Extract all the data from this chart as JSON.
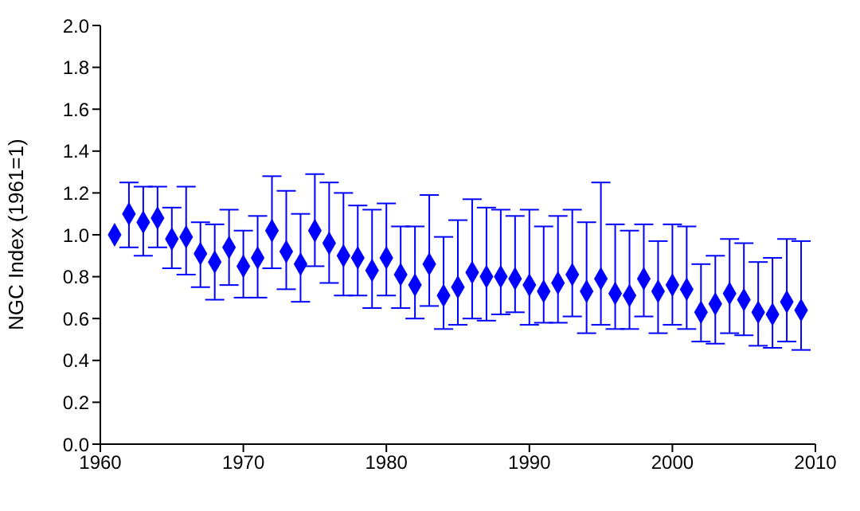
{
  "chart_data": {
    "type": "scatter",
    "ylabel": "NGC Index (1961=1)",
    "x": [
      1961,
      1962,
      1963,
      1964,
      1965,
      1966,
      1967,
      1968,
      1969,
      1970,
      1971,
      1972,
      1973,
      1974,
      1975,
      1976,
      1977,
      1978,
      1979,
      1980,
      1981,
      1982,
      1983,
      1984,
      1985,
      1986,
      1987,
      1988,
      1989,
      1990,
      1991,
      1992,
      1993,
      1994,
      1995,
      1996,
      1997,
      1998,
      1999,
      2000,
      2001,
      2002,
      2003,
      2004,
      2005,
      2006,
      2007,
      2008,
      2009
    ],
    "series": [
      {
        "color": "#0000ff",
        "values": [
          1.0,
          1.1,
          1.06,
          1.08,
          0.98,
          0.99,
          0.91,
          0.87,
          0.94,
          0.85,
          0.89,
          1.02,
          0.92,
          0.86,
          1.02,
          0.96,
          0.9,
          0.89,
          0.83,
          0.89,
          0.81,
          0.76,
          0.86,
          0.71,
          0.75,
          0.82,
          0.8,
          0.8,
          0.79,
          0.76,
          0.73,
          0.77,
          0.81,
          0.73,
          0.79,
          0.72,
          0.71,
          0.79,
          0.73,
          0.76,
          0.74,
          0.63,
          0.67,
          0.72,
          0.69,
          0.63,
          0.62,
          0.68,
          0.64
        ],
        "errors": [
          null,
          [
            0.94,
            1.25
          ],
          [
            0.9,
            1.23
          ],
          [
            0.94,
            1.23
          ],
          [
            0.84,
            1.13
          ],
          [
            0.81,
            1.23
          ],
          [
            0.75,
            1.06
          ],
          [
            0.69,
            1.05
          ],
          [
            0.76,
            1.12
          ],
          [
            0.7,
            1.02
          ],
          [
            0.7,
            1.09
          ],
          [
            0.84,
            1.28
          ],
          [
            0.74,
            1.21
          ],
          [
            0.68,
            1.1
          ],
          [
            0.85,
            1.29
          ],
          [
            0.77,
            1.25
          ],
          [
            0.71,
            1.2
          ],
          [
            0.71,
            1.14
          ],
          [
            0.65,
            1.12
          ],
          [
            0.71,
            1.15
          ],
          [
            0.65,
            1.04
          ],
          [
            0.6,
            1.04
          ],
          [
            0.66,
            1.19
          ],
          [
            0.55,
            0.99
          ],
          [
            0.57,
            1.07
          ],
          [
            0.6,
            1.17
          ],
          [
            0.59,
            1.13
          ],
          [
            0.62,
            1.12
          ],
          [
            0.63,
            1.09
          ],
          [
            0.57,
            1.12
          ],
          [
            0.58,
            1.04
          ],
          [
            0.58,
            1.09
          ],
          [
            0.61,
            1.12
          ],
          [
            0.53,
            1.06
          ],
          [
            0.57,
            1.25
          ],
          [
            0.55,
            1.05
          ],
          [
            0.55,
            1.02
          ],
          [
            0.61,
            1.05
          ],
          [
            0.53,
            0.97
          ],
          [
            0.57,
            1.05
          ],
          [
            0.55,
            1.04
          ],
          [
            0.49,
            0.86
          ],
          [
            0.48,
            0.9
          ],
          [
            0.53,
            0.98
          ],
          [
            0.52,
            0.96
          ],
          [
            0.47,
            0.87
          ],
          [
            0.46,
            0.89
          ],
          [
            0.49,
            0.98
          ],
          [
            0.45,
            0.97
          ]
        ]
      }
    ],
    "xlim": [
      1960,
      2010
    ],
    "xticks": [
      1960,
      1970,
      1980,
      1990,
      2000,
      2010
    ],
    "ylim": [
      0,
      2
    ],
    "yticks": [
      {
        "value": 0,
        "label": "0.0"
      },
      {
        "value": 0.2,
        "label": "0.2"
      },
      {
        "value": 0.4,
        "label": "0.4"
      },
      {
        "value": 0.6,
        "label": "0.6"
      },
      {
        "value": 0.8,
        "label": "0.8"
      },
      {
        "value": 1,
        "label": "1.0"
      },
      {
        "value": 1.2,
        "label": "1.2"
      },
      {
        "value": 1.4,
        "label": "1.4"
      },
      {
        "value": 1.6,
        "label": "1.6"
      },
      {
        "value": 1.8,
        "label": "1.8"
      },
      {
        "value": 2,
        "label": "2.0"
      }
    ],
    "marker": "diamond",
    "grid": false,
    "legend": false
  }
}
